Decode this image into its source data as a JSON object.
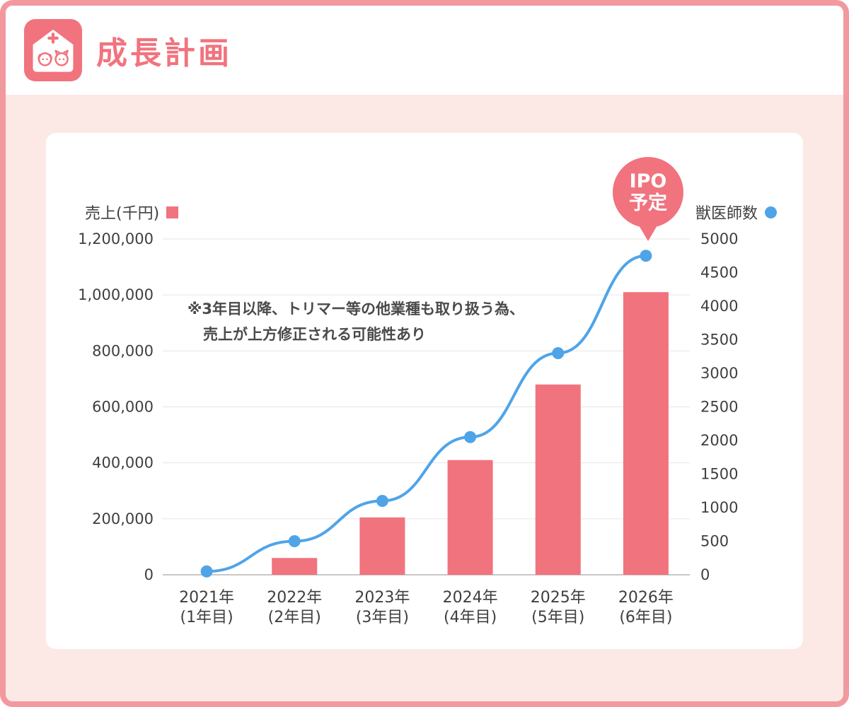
{
  "header": {
    "title": "成長計画"
  },
  "ipo_badge": {
    "line1": "IPO",
    "line2": "予定"
  },
  "colors": {
    "accent_pink": "#F1737E",
    "accent_blue": "#4FA4E8",
    "frame_border": "#F2989F",
    "page_background": "#FCE9E5",
    "grid_line": "#E6E6E6",
    "axis_line": "#C8C8C8",
    "text": "#3F3F3F"
  },
  "chart_data": {
    "type": "bar",
    "combo": true,
    "title": "成長計画",
    "categories": [
      "2021年",
      "2022年",
      "2023年",
      "2024年",
      "2025年",
      "2026年"
    ],
    "category_sublabels": [
      "(1年目)",
      "(2年目)",
      "(3年目)",
      "(4年目)",
      "(5年目)",
      "(6年目)"
    ],
    "series": [
      {
        "name": "売上(千円)",
        "type": "bar",
        "axis": "left",
        "color": "#F1737E",
        "values": [
          0,
          60000,
          205000,
          410000,
          680000,
          1010000
        ]
      },
      {
        "name": "獣医師数",
        "type": "line",
        "axis": "right",
        "color": "#4FA4E8",
        "values": [
          50,
          500,
          1100,
          2050,
          3300,
          4750
        ]
      }
    ],
    "left_axis": {
      "label": "売上(千円)",
      "min": 0,
      "max": 1200000,
      "step": 200000
    },
    "right_axis": {
      "label": "獣医師数",
      "min": 0,
      "max": 5000,
      "step": 500
    },
    "grid": true,
    "legend_position": "top",
    "annotations": [
      "※3年目以降、トリマー等の他業種も取り扱う為、",
      "売上が上方修正される可能性あり"
    ],
    "callout": {
      "line1": "IPO",
      "line2": "予定",
      "target": "2026年"
    }
  }
}
